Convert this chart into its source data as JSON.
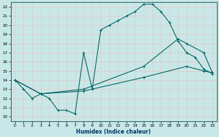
{
  "xlabel": "Humidex (Indice chaleur)",
  "xlim": [
    -0.5,
    23.5
  ],
  "ylim": [
    9.5,
    22.5
  ],
  "xticks": [
    0,
    1,
    2,
    3,
    4,
    5,
    6,
    7,
    8,
    9,
    10,
    11,
    12,
    13,
    14,
    15,
    16,
    17,
    18,
    19,
    20,
    21,
    22,
    23
  ],
  "yticks": [
    10,
    11,
    12,
    13,
    14,
    15,
    16,
    17,
    18,
    19,
    20,
    21,
    22
  ],
  "bg_color": "#c8e8e8",
  "grid_color": "#e8c8c8",
  "line_color": "#006060",
  "lines": [
    {
      "x": [
        0,
        1,
        2,
        3,
        4,
        5,
        6,
        7,
        8,
        9,
        10,
        11,
        12,
        13,
        14,
        15,
        16,
        17,
        18,
        19,
        20,
        21,
        22,
        23
      ],
      "y": [
        14,
        13,
        12,
        12.5,
        12,
        10.7,
        10.7,
        10.3,
        17,
        13,
        19.5,
        20,
        20.5,
        21,
        21.5,
        22.3,
        22.3,
        21.5,
        20.3,
        18.3,
        17,
        16.5,
        15.2,
        14.7
      ]
    },
    {
      "x": [
        0,
        3,
        8,
        15,
        19,
        20,
        22,
        23
      ],
      "y": [
        14,
        12.5,
        13,
        15.5,
        18.5,
        18,
        17,
        14.8
      ]
    },
    {
      "x": [
        0,
        3,
        8,
        15,
        20,
        22,
        23
      ],
      "y": [
        14,
        12.5,
        12.8,
        14.3,
        15.5,
        15,
        14.8
      ]
    }
  ]
}
